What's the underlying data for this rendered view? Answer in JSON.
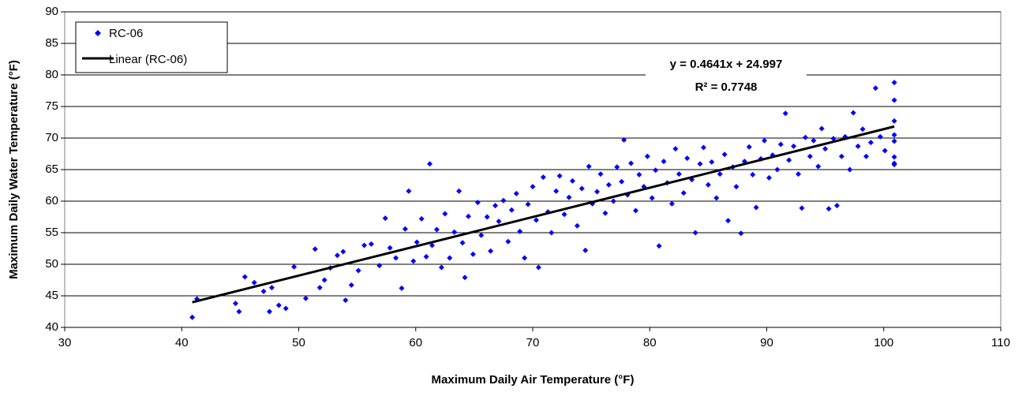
{
  "chart_data": {
    "type": "scatter",
    "xlabel": "Maximum Daily Air Temperature (°F)",
    "ylabel": "Maximum Daily Water Temperature (°F)",
    "xlim": [
      30,
      110
    ],
    "xticks": [
      30,
      40,
      50,
      60,
      70,
      80,
      90,
      100,
      110
    ],
    "ylim": [
      40,
      90
    ],
    "yticks": [
      40,
      45,
      50,
      55,
      60,
      65,
      70,
      75,
      80,
      85,
      90
    ],
    "grid": true,
    "legend": "upper left",
    "annotations": [
      "y = 0.4641x + 24.997",
      "R² = 0.7748"
    ],
    "series": [
      {
        "name": "RC-06",
        "color": "#0000ff",
        "x": [
          40.9,
          41.3,
          44.6,
          44.9,
          45.4,
          46.2,
          47,
          47.5,
          47.7,
          48.3,
          48.9,
          49.6,
          50.6,
          51.4,
          51.8,
          52.2,
          52.7,
          53.3,
          53.8,
          54,
          54.5,
          55.1,
          55.6,
          56.2,
          56.9,
          57.4,
          57.8,
          58.3,
          58.8,
          59.1,
          59.4,
          59.8,
          60.1,
          60.5,
          60.9,
          61.2,
          61.4,
          61.8,
          62.2,
          62.5,
          62.9,
          63.3,
          63.7,
          64,
          64.2,
          64.5,
          64.9,
          65.3,
          65.6,
          66.1,
          66.4,
          66.8,
          67.1,
          67.5,
          67.9,
          68.2,
          68.6,
          68.9,
          69.3,
          69.6,
          70,
          70.3,
          70.5,
          70.9,
          71.3,
          71.6,
          72,
          72.3,
          72.7,
          73.1,
          73.4,
          73.8,
          74.2,
          74.5,
          74.8,
          75.1,
          75.5,
          75.8,
          76.2,
          76.5,
          76.9,
          77.2,
          77.6,
          77.8,
          78.1,
          78.4,
          78.8,
          79.1,
          79.5,
          79.8,
          80.2,
          80.5,
          80.8,
          81.2,
          81.5,
          81.9,
          82.2,
          82.5,
          82.9,
          83.2,
          83.6,
          83.9,
          84.3,
          84.6,
          85,
          85.3,
          85.7,
          86,
          86.4,
          86.7,
          87.1,
          87.4,
          87.8,
          88.1,
          88.5,
          88.8,
          89.1,
          89.5,
          89.8,
          90.2,
          90.5,
          90.9,
          91.2,
          91.6,
          91.9,
          92.3,
          92.7,
          93,
          93.3,
          93.7,
          94,
          94.4,
          94.7,
          95,
          95.3,
          95.7,
          96,
          96.4,
          96.7,
          97.1,
          97.4,
          97.8,
          98.2,
          98.5,
          98.9,
          99.3,
          99.7,
          100.1,
          100.9,
          100.9,
          100.9,
          100.9,
          100.9,
          100.9,
          100.9,
          100.9
        ],
        "values": [
          41.6,
          44.5,
          43.8,
          42.5,
          48,
          47.1,
          45.7,
          42.5,
          46.3,
          43.5,
          43,
          49.6,
          44.6,
          52.4,
          46.3,
          47.5,
          49.4,
          51.4,
          52,
          44.3,
          46.7,
          49,
          53,
          53.2,
          49.8,
          57.3,
          52.6,
          51,
          46.2,
          55.6,
          61.6,
          50.5,
          53.5,
          57.2,
          51.2,
          65.9,
          53,
          55.5,
          49.5,
          58,
          51,
          55.1,
          61.6,
          53.4,
          47.9,
          57.6,
          51.6,
          59.8,
          54.6,
          57.5,
          52.1,
          59.3,
          56.8,
          60.1,
          53.6,
          58.6,
          61.2,
          55.2,
          51,
          59.5,
          62.3,
          57,
          49.5,
          63.8,
          58.3,
          55,
          61.6,
          64,
          57.9,
          60.6,
          63.2,
          56.1,
          62,
          52.2,
          65.5,
          59.6,
          61.5,
          64.3,
          58.1,
          62.6,
          60,
          65.4,
          63.1,
          69.7,
          61,
          66,
          58.5,
          64.2,
          62.3,
          67.1,
          60.5,
          64.9,
          52.9,
          66.3,
          62.9,
          59.6,
          68.3,
          64.3,
          61.3,
          66.8,
          63.4,
          55,
          65.9,
          68.5,
          62.6,
          66.2,
          60.5,
          64.3,
          67.4,
          56.9,
          65.4,
          62.3,
          54.9,
          66.3,
          68.6,
          64.2,
          59,
          66.7,
          69.6,
          63.7,
          67.3,
          65,
          69,
          73.9,
          66.5,
          68.7,
          64.3,
          58.9,
          70.1,
          67.1,
          69.6,
          65.5,
          71.5,
          68.3,
          58.8,
          69.9,
          59.3,
          67.1,
          70.2,
          65,
          74,
          68.7,
          71.4,
          67.1,
          69.3,
          77.9,
          70.2,
          68,
          78.8,
          76,
          72.7,
          70.5,
          67,
          66,
          65.8,
          69.5
        ]
      }
    ],
    "trendline": {
      "name": "Linear (RC-06)",
      "color": "#000000",
      "x": [
        40.9,
        100.9
      ],
      "values": [
        43.98,
        71.83
      ]
    }
  }
}
